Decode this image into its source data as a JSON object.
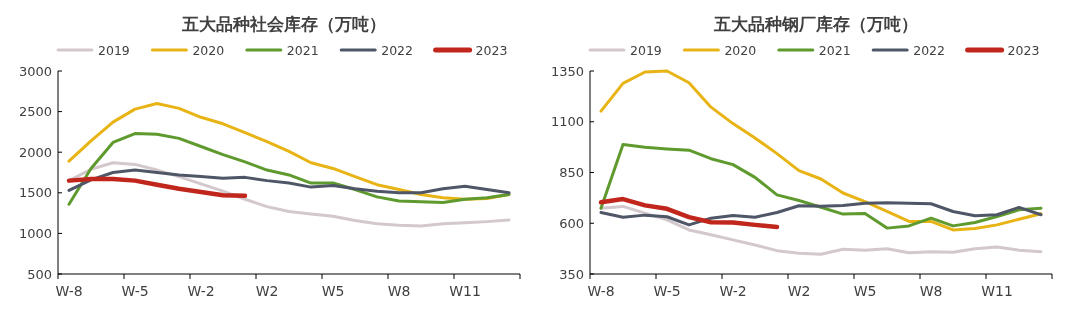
{
  "chart_data": [
    {
      "type": "line",
      "title": "五大品种社会库存（万吨）",
      "categories": [
        "W-8",
        null,
        null,
        "W-5",
        null,
        null,
        "W-2",
        null,
        null,
        "W2",
        null,
        null,
        "W5",
        null,
        null,
        "W8",
        null,
        null,
        "W11",
        null,
        null
      ],
      "ylim": [
        500,
        3000
      ],
      "yticks": [
        500,
        1000,
        1500,
        2000,
        2500,
        3000
      ],
      "legend": "top",
      "grid": false,
      "marker": "none",
      "line_style": "solid",
      "series": [
        {
          "name": "2019",
          "color": "#d3c8cc",
          "values": [
            1650,
            1790,
            1870,
            1850,
            1780,
            1700,
            1610,
            1520,
            1420,
            1330,
            1270,
            1240,
            1210,
            1160,
            1120,
            1100,
            1090,
            1120,
            1130,
            1145,
            1165
          ]
        },
        {
          "name": "2020",
          "color": "#e8b415",
          "values": [
            1890,
            2140,
            2370,
            2530,
            2600,
            2540,
            2430,
            2350,
            2240,
            2130,
            2010,
            1870,
            1800,
            1700,
            1600,
            1540,
            1480,
            1440,
            1420,
            1430,
            1480
          ]
        },
        {
          "name": "2021",
          "color": "#5e9a2e",
          "values": [
            1360,
            1800,
            2120,
            2230,
            2220,
            2170,
            2070,
            1970,
            1880,
            1780,
            1720,
            1620,
            1620,
            1540,
            1450,
            1400,
            1390,
            1380,
            1420,
            1440,
            1480
          ]
        },
        {
          "name": "2022",
          "color": "#4f5667",
          "values": [
            1530,
            1660,
            1750,
            1780,
            1750,
            1720,
            1700,
            1680,
            1690,
            1650,
            1620,
            1570,
            1590,
            1550,
            1520,
            1500,
            1500,
            1550,
            1580,
            1540,
            1500
          ]
        },
        {
          "name": "2023",
          "color": "#c0261c",
          "values": [
            1650,
            1670,
            1670,
            1650,
            1600,
            1550,
            1510,
            1470,
            1465,
            null,
            null,
            null,
            null,
            null,
            null,
            null,
            null,
            null,
            null,
            null,
            null
          ]
        }
      ]
    },
    {
      "type": "line",
      "title": "五大品种钢厂库存（万吨）",
      "categories": [
        "W-8",
        null,
        null,
        "W-5",
        null,
        null,
        "W-2",
        null,
        null,
        "W2",
        null,
        null,
        "W5",
        null,
        null,
        "W8",
        null,
        null,
        "W11",
        null,
        null
      ],
      "ylim": [
        350,
        1350
      ],
      "yticks": [
        350,
        600,
        850,
        1100,
        1350
      ],
      "legend": "top",
      "grid": false,
      "marker": "none",
      "line_style": "solid",
      "series": [
        {
          "name": "2019",
          "color": "#d3c8cc",
          "values": [
            674,
            683,
            650,
            617,
            567,
            543,
            518,
            493,
            465,
            452,
            447,
            472,
            467,
            474,
            455,
            459,
            457,
            474,
            483,
            467,
            460
          ]
        },
        {
          "name": "2020",
          "color": "#e8b415",
          "values": [
            1152,
            1289,
            1345,
            1350,
            1292,
            1172,
            1091,
            1020,
            943,
            859,
            818,
            749,
            707,
            658,
            609,
            609,
            567,
            574,
            592,
            620,
            647
          ]
        },
        {
          "name": "2021",
          "color": "#5e9a2e",
          "values": [
            674,
            988,
            974,
            966,
            960,
            918,
            889,
            826,
            740,
            712,
            679,
            645,
            648,
            576,
            587,
            625,
            587,
            604,
            633,
            666,
            674
          ]
        },
        {
          "name": "2022",
          "color": "#4f5667",
          "values": [
            653,
            630,
            640,
            632,
            592,
            625,
            638,
            630,
            653,
            686,
            684,
            688,
            699,
            701,
            699,
            696,
            658,
            637,
            642,
            678,
            642
          ]
        },
        {
          "name": "2023",
          "color": "#c0261c",
          "values": [
            703,
            719,
            688,
            671,
            630,
            605,
            604,
            592,
            581,
            null,
            null,
            null,
            null,
            null,
            null,
            null,
            null,
            null,
            null,
            null,
            null
          ]
        }
      ]
    }
  ]
}
